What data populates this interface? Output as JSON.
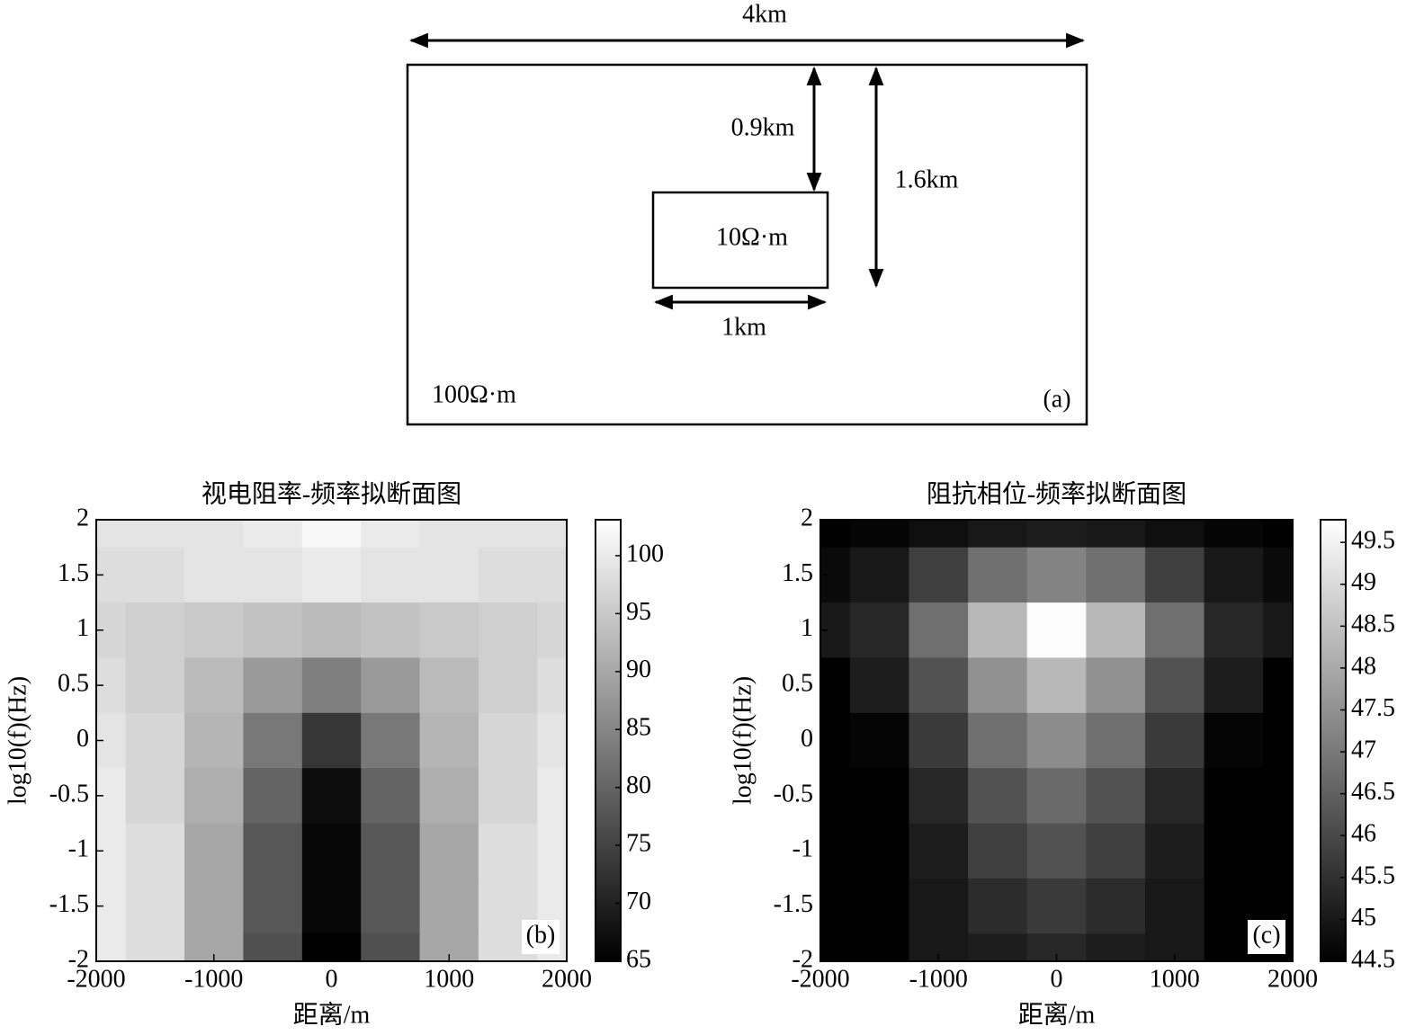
{
  "diagram": {
    "width_label": "4km",
    "depth_top_label": "0.9km",
    "depth_bottom_label": "1.6km",
    "body_label": "10Ω·m",
    "body_width_label": "1km",
    "host_label": "100Ω·m",
    "panel_label": "(a)"
  },
  "chart_data": [
    {
      "type": "contour",
      "title": "视电阻率-频率拟断面图",
      "x_label": "距离/m",
      "y_label": "log10(f)(Hz)",
      "panel_label": "(b)",
      "x": [
        -2000,
        -1500,
        -1000,
        -500,
        0,
        500,
        1000,
        1500,
        2000
      ],
      "y": [
        2,
        1.5,
        1,
        0.5,
        0,
        -0.5,
        -1,
        -1.5,
        -2
      ],
      "z": [
        [
          99,
          99,
          99,
          100,
          102,
          100,
          99,
          99,
          99
        ],
        [
          98,
          98,
          99,
          99,
          100,
          99,
          99,
          98,
          98
        ],
        [
          97,
          96,
          95,
          94,
          93,
          94,
          95,
          96,
          97
        ],
        [
          98,
          96,
          93,
          88,
          84,
          88,
          93,
          96,
          98
        ],
        [
          99,
          97,
          92,
          83,
          73,
          83,
          92,
          97,
          99
        ],
        [
          100,
          97,
          91,
          80,
          67,
          80,
          91,
          97,
          100
        ],
        [
          100,
          98,
          90,
          78,
          66,
          78,
          90,
          98,
          100
        ],
        [
          100,
          98,
          90,
          78,
          66,
          78,
          90,
          98,
          100
        ],
        [
          100,
          98,
          90,
          77,
          65,
          77,
          90,
          98,
          100
        ]
      ],
      "xlim": [
        -2000,
        2000
      ],
      "xticks": [
        -2000,
        -1000,
        0,
        1000,
        2000
      ],
      "ylim": [
        -2,
        2
      ],
      "yticks": [
        2,
        1.5,
        1,
        0.5,
        0,
        -0.5,
        -1,
        -1.5,
        -2
      ],
      "zlim": [
        65,
        103.1
      ],
      "zticks": [
        65,
        70,
        75,
        80,
        85,
        90,
        95,
        100
      ],
      "colormap": [
        "#000000",
        "#ffffff"
      ]
    },
    {
      "type": "contour",
      "title": "阻抗相位-频率拟断面图",
      "x_label": "距离/m",
      "y_label": "log10(f)(Hz)",
      "panel_label": "(c)",
      "x": [
        -2000,
        -1500,
        -1000,
        -500,
        0,
        500,
        1000,
        1500,
        2000
      ],
      "y": [
        2,
        1.5,
        1,
        0.5,
        0,
        -0.5,
        -1,
        -1.5,
        -2
      ],
      "z": [
        [
          44.5,
          44.6,
          44.8,
          45.0,
          45.1,
          45.0,
          44.8,
          44.6,
          44.5
        ],
        [
          44.7,
          45.0,
          45.8,
          46.8,
          47.2,
          46.8,
          45.8,
          45.0,
          44.7
        ],
        [
          45.0,
          45.3,
          46.8,
          48.3,
          49.7,
          48.3,
          46.8,
          45.3,
          45.0
        ],
        [
          44.5,
          45.1,
          46.2,
          47.5,
          48.3,
          47.5,
          46.2,
          45.1,
          44.5
        ],
        [
          44.5,
          44.6,
          45.7,
          46.8,
          47.4,
          46.8,
          45.7,
          44.6,
          44.5
        ],
        [
          44.5,
          44.5,
          45.3,
          46.2,
          46.7,
          46.2,
          45.3,
          44.5,
          44.5
        ],
        [
          44.5,
          44.5,
          45.1,
          45.8,
          46.2,
          45.8,
          45.1,
          44.5,
          44.5
        ],
        [
          44.5,
          44.5,
          45.0,
          45.4,
          45.7,
          45.4,
          45.0,
          44.5,
          44.5
        ],
        [
          44.5,
          44.5,
          45.0,
          45.1,
          45.3,
          45.1,
          45.0,
          44.5,
          44.5
        ]
      ],
      "xlim": [
        -2000,
        2000
      ],
      "xticks": [
        -2000,
        -1000,
        0,
        1000,
        2000
      ],
      "ylim": [
        -2,
        2
      ],
      "yticks": [
        2,
        1.5,
        1,
        0.5,
        0,
        -0.5,
        -1,
        -1.5,
        -2
      ],
      "zlim": [
        44.5,
        49.77
      ],
      "zticks": [
        44.5,
        45,
        45.5,
        46,
        46.5,
        47,
        47.5,
        48,
        48.5,
        49,
        49.5
      ],
      "colormap": [
        "#000000",
        "#ffffff"
      ]
    }
  ]
}
